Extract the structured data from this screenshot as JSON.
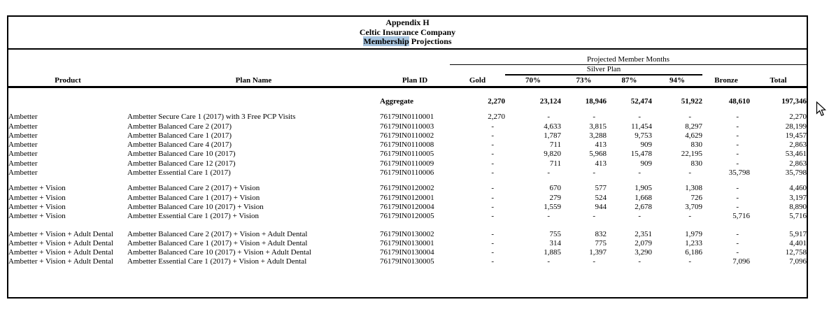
{
  "title_block": {
    "line1": "Appendix H",
    "line2": "Celtic Insurance Company",
    "line3_highlight": "Membership",
    "line3_rest": " Projections"
  },
  "table": {
    "group_header": "Projected Member Months",
    "silver_header": "Silver Plan",
    "columns": [
      "Product",
      "Plan Name",
      "Plan ID",
      "Gold",
      "70%",
      "73%",
      "87%",
      "94%",
      "Bronze",
      "Total"
    ],
    "aggregate": {
      "label": "Aggregate",
      "values": [
        "2,270",
        "23,124",
        "18,946",
        "52,474",
        "51,922",
        "48,610",
        "197,346"
      ]
    },
    "groups": [
      {
        "rows": [
          {
            "product": "Ambetter",
            "plan_name": "Ambetter Secure Care 1 (2017) with 3 Free PCP Visits",
            "plan_id": "76179IN0110001",
            "values": [
              "2,270",
              "-",
              "-",
              "-",
              "-",
              "-",
              "2,270"
            ]
          },
          {
            "product": "Ambetter",
            "plan_name": "Ambetter Balanced Care 2 (2017)",
            "plan_id": "76179IN0110003",
            "values": [
              "-",
              "4,633",
              "3,815",
              "11,454",
              "8,297",
              "-",
              "28,199"
            ]
          },
          {
            "product": "Ambetter",
            "plan_name": "Ambetter Balanced Care 1 (2017)",
            "plan_id": "76179IN0110002",
            "values": [
              "-",
              "1,787",
              "3,288",
              "9,753",
              "4,629",
              "-",
              "19,457"
            ]
          },
          {
            "product": "Ambetter",
            "plan_name": "Ambetter Balanced Care 4 (2017)",
            "plan_id": "76179IN0110008",
            "values": [
              "-",
              "711",
              "413",
              "909",
              "830",
              "-",
              "2,863"
            ]
          },
          {
            "product": "Ambetter",
            "plan_name": "Ambetter Balanced Care 10 (2017)",
            "plan_id": "76179IN0110005",
            "values": [
              "-",
              "9,820",
              "5,968",
              "15,478",
              "22,195",
              "-",
              "53,461"
            ]
          },
          {
            "product": "Ambetter",
            "plan_name": "Ambetter Balanced Care 12 (2017)",
            "plan_id": "76179IN0110009",
            "values": [
              "-",
              "711",
              "413",
              "909",
              "830",
              "-",
              "2,863"
            ]
          },
          {
            "product": "Ambetter",
            "plan_name": "Ambetter Essential Care 1 (2017)",
            "plan_id": "76179IN0110006",
            "values": [
              "-",
              "-",
              "-",
              "-",
              "-",
              "35,798",
              "35,798"
            ]
          }
        ]
      },
      {
        "rows": [
          {
            "product": "Ambetter + Vision",
            "plan_name": "Ambetter Balanced Care 2 (2017) + Vision",
            "plan_id": "76179IN0120002",
            "values": [
              "-",
              "670",
              "577",
              "1,905",
              "1,308",
              "-",
              "4,460"
            ]
          },
          {
            "product": "Ambetter + Vision",
            "plan_name": "Ambetter Balanced Care 1 (2017) + Vision",
            "plan_id": "76179IN0120001",
            "values": [
              "-",
              "279",
              "524",
              "1,668",
              "726",
              "-",
              "3,197"
            ]
          },
          {
            "product": "Ambetter + Vision",
            "plan_name": "Ambetter Balanced Care 10 (2017) + Vision",
            "plan_id": "76179IN0120004",
            "values": [
              "-",
              "1,559",
              "944",
              "2,678",
              "3,709",
              "-",
              "8,890"
            ]
          },
          {
            "product": "Ambetter + Vision",
            "plan_name": "Ambetter Essential Care 1 (2017) + Vision",
            "plan_id": "76179IN0120005",
            "values": [
              "-",
              "-",
              "-",
              "-",
              "-",
              "5,716",
              "5,716"
            ]
          }
        ]
      },
      {
        "rows": [
          {
            "product": "Ambetter + Vision + Adult Dental",
            "plan_name": "Ambetter Balanced Care 2 (2017) + Vision + Adult Dental",
            "plan_id": "76179IN0130002",
            "values": [
              "-",
              "755",
              "832",
              "2,351",
              "1,979",
              "-",
              "5,917"
            ]
          },
          {
            "product": "Ambetter + Vision + Adult Dental",
            "plan_name": "Ambetter Balanced Care 1 (2017) + Vision + Adult Dental",
            "plan_id": "76179IN0130001",
            "values": [
              "-",
              "314",
              "775",
              "2,079",
              "1,233",
              "-",
              "4,401"
            ]
          },
          {
            "product": "Ambetter + Vision + Adult Dental",
            "plan_name": "Ambetter Balanced Care 10 (2017) + Vision + Adult Dental",
            "plan_id": "76179IN0130004",
            "values": [
              "-",
              "1,885",
              "1,397",
              "3,290",
              "6,186",
              "-",
              "12,758"
            ]
          },
          {
            "product": "Ambetter + Vision + Adult Dental",
            "plan_name": "Ambetter Essential Care 1 (2017) + Vision + Adult Dental",
            "plan_id": "76179IN0130005",
            "values": [
              "-",
              "-",
              "-",
              "-",
              "-",
              "7,096",
              "7,096"
            ]
          }
        ]
      }
    ]
  },
  "colors": {
    "selection_highlight": "#a9c6e1",
    "text": "#000000",
    "border": "#000000"
  }
}
